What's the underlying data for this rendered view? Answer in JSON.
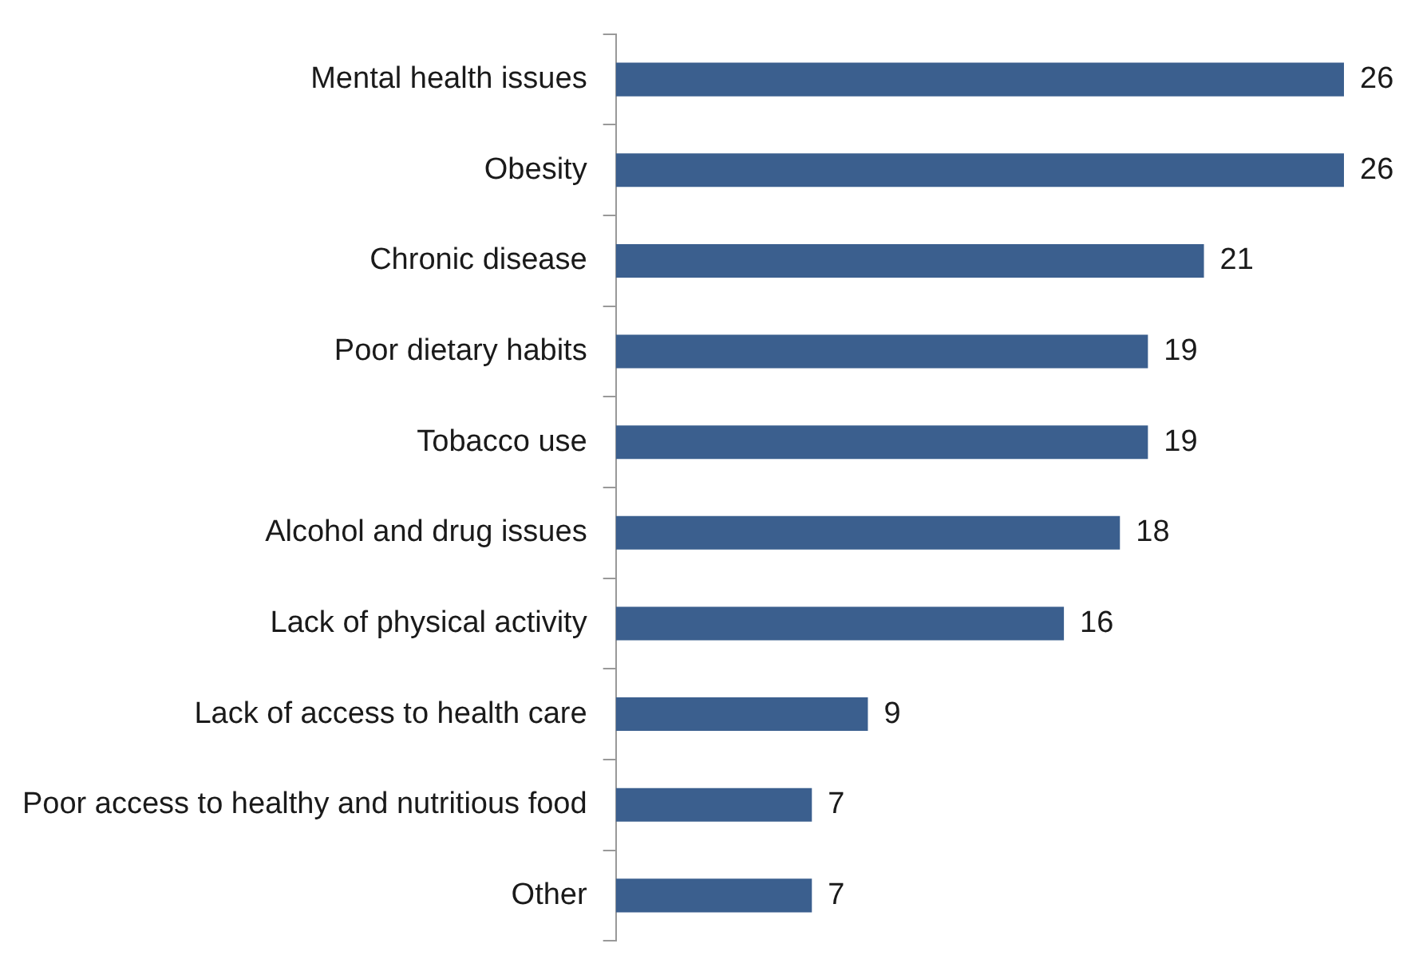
{
  "chart_data": {
    "type": "bar",
    "orientation": "horizontal",
    "categories": [
      "Mental health issues",
      "Obesity",
      "Chronic disease",
      "Poor dietary habits",
      "Tobacco use",
      "Alcohol and drug issues",
      "Lack of physical activity",
      "Lack of access to health care",
      "Poor access to healthy and nutritious food",
      "Other"
    ],
    "values": [
      26,
      26,
      21,
      19,
      19,
      18,
      16,
      9,
      7,
      7
    ],
    "color": "#3b5f8e",
    "data_labels": true,
    "grid": false,
    "legend": false
  }
}
